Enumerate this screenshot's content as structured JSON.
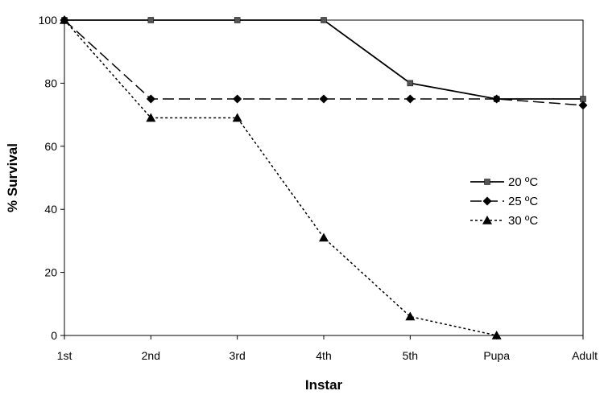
{
  "chart_data": {
    "type": "line",
    "title": "",
    "xlabel": "Instar",
    "ylabel": "% Survival",
    "categories": [
      "1st",
      "2nd",
      "3rd",
      "4th",
      "5th",
      "Pupa",
      "Adult"
    ],
    "ylim": [
      0,
      100
    ],
    "yticks": [
      "0",
      "20",
      "40",
      "60",
      "80",
      "100"
    ],
    "grid": false,
    "legend_position": "right",
    "series": [
      {
        "name": "20 ºC",
        "values": [
          100,
          100,
          100,
          100,
          80,
          75,
          75
        ],
        "line_style": "solid",
        "marker": "square"
      },
      {
        "name": "25 ºC",
        "values": [
          100,
          75,
          75,
          75,
          75,
          75,
          73
        ],
        "line_style": "dashed",
        "marker": "diamond"
      },
      {
        "name": "30 ºC",
        "values": [
          100,
          69,
          69,
          31,
          6,
          0,
          null
        ],
        "line_style": "dotted",
        "marker": "triangle"
      }
    ]
  }
}
